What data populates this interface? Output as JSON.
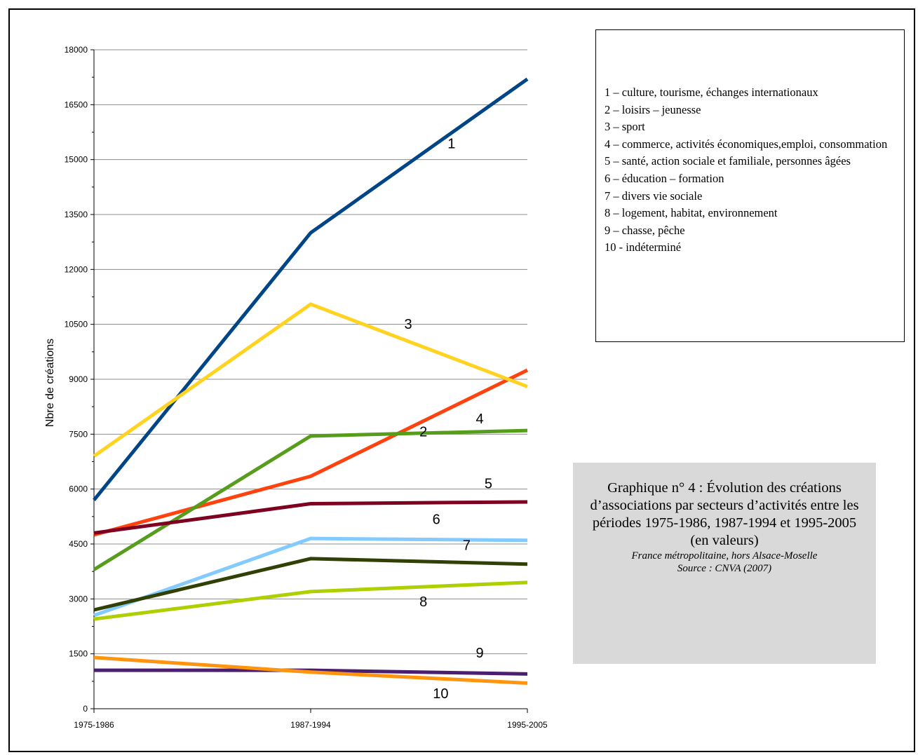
{
  "chart_data": {
    "type": "line",
    "title": "Graphique n° 4 : Évolution des créations d’associations par secteurs d’activités entre les périodes  1975-1986, 1987-1994 et 1995-2005 (en valeurs)",
    "subtitle": "France métropolitaine, hors Alsace-Moselle",
    "source": "Source : CNVA (2007)",
    "xlabel": "",
    "ylabel": "Nbre de créations",
    "categories": [
      "1975-1986",
      "1987-1994",
      "1995-2005"
    ],
    "ylim": [
      0,
      18000
    ],
    "yticks": [
      0,
      1500,
      3000,
      4500,
      6000,
      7500,
      9000,
      10500,
      12000,
      13500,
      15000,
      16500,
      18000
    ],
    "grid": true,
    "series": [
      {
        "name": "1",
        "color": "#004586",
        "values": [
          5700,
          13000,
          17200
        ]
      },
      {
        "name": "2",
        "color": "#ff420e",
        "values": [
          4750,
          6350,
          9250
        ]
      },
      {
        "name": "3",
        "color": "#ffd320",
        "values": [
          6900,
          11050,
          8800
        ]
      },
      {
        "name": "4",
        "color": "#579d1c",
        "values": [
          3800,
          7450,
          7600
        ]
      },
      {
        "name": "5",
        "color": "#7e0021",
        "values": [
          4800,
          5600,
          5650
        ]
      },
      {
        "name": "6",
        "color": "#83caff",
        "values": [
          2550,
          4650,
          4600
        ]
      },
      {
        "name": "7",
        "color": "#314004",
        "values": [
          2700,
          4100,
          3950
        ]
      },
      {
        "name": "8",
        "color": "#aecf00",
        "values": [
          2450,
          3200,
          3450
        ]
      },
      {
        "name": "9",
        "color": "#4b1f6f",
        "values": [
          1050,
          1050,
          950
        ]
      },
      {
        "name": "10",
        "color": "#ff950e",
        "values": [
          1400,
          1000,
          700
        ]
      }
    ]
  },
  "legend": {
    "entries": [
      "1 – culture, tourisme, échanges internationaux",
      "2 – loisirs – jeunesse",
      "3 – sport",
      "4 – commerce, activités économiques,emploi, consommation",
      "5 – santé, action sociale et familiale, personnes âgées",
      "6 – éducation – formation",
      "7 – divers vie sociale",
      "8 – logement, habitat, environnement",
      "9 – chasse, pêche",
      "10  - indéterminé"
    ]
  }
}
